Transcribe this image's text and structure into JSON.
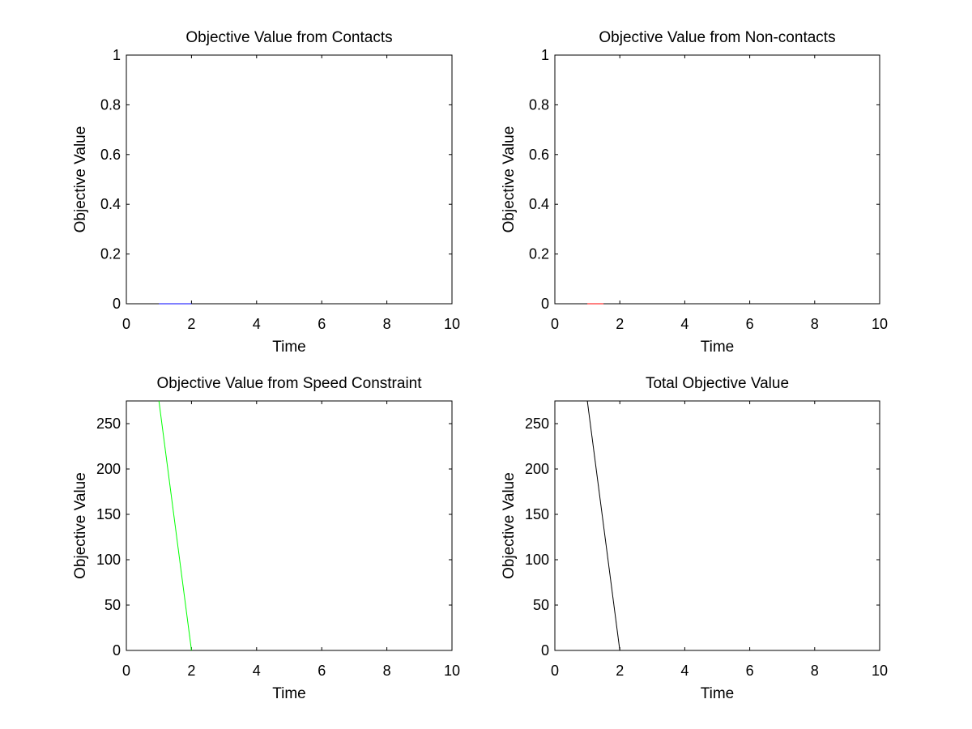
{
  "chart_data": [
    {
      "type": "line",
      "title": "Objective Value from Contacts",
      "xlabel": "Time",
      "ylabel": "Objective Value",
      "xlim": [
        0,
        10
      ],
      "ylim": [
        0,
        1
      ],
      "xticks": [
        0,
        2,
        4,
        6,
        8,
        10
      ],
      "yticks": [
        0,
        0.2,
        0.4,
        0.6,
        0.8,
        1
      ],
      "ytick_labels": [
        "0",
        "0.2",
        "0.4",
        "0.6",
        "0.8",
        "1"
      ],
      "grid": false,
      "series": [
        {
          "color": "#0000ff",
          "x": [
            1,
            2
          ],
          "y": [
            0,
            0
          ]
        }
      ]
    },
    {
      "type": "line",
      "title": "Objective Value from Non-contacts",
      "xlabel": "Time",
      "ylabel": "Objective Value",
      "xlim": [
        0,
        10
      ],
      "ylim": [
        0,
        1
      ],
      "xticks": [
        0,
        2,
        4,
        6,
        8,
        10
      ],
      "yticks": [
        0,
        0.2,
        0.4,
        0.6,
        0.8,
        1
      ],
      "ytick_labels": [
        "0",
        "0.2",
        "0.4",
        "0.6",
        "0.8",
        "1"
      ],
      "grid": false,
      "series": [
        {
          "color": "#ff0000",
          "x": [
            1,
            1.5
          ],
          "y": [
            0,
            0
          ]
        }
      ]
    },
    {
      "type": "line",
      "title": "Objective Value from Speed Constraint",
      "xlabel": "Time",
      "ylabel": "Objective Value",
      "xlim": [
        0,
        10
      ],
      "ylim": [
        0,
        275
      ],
      "xticks": [
        0,
        2,
        4,
        6,
        8,
        10
      ],
      "yticks": [
        0,
        50,
        100,
        150,
        200,
        250
      ],
      "ytick_labels": [
        "0",
        "50",
        "100",
        "150",
        "200",
        "250"
      ],
      "grid": false,
      "series": [
        {
          "color": "#00ff00",
          "x": [
            1,
            2
          ],
          "y": [
            275,
            0
          ]
        }
      ]
    },
    {
      "type": "line",
      "title": "Total Objective Value",
      "xlabel": "Time",
      "ylabel": "Objective Value",
      "xlim": [
        0,
        10
      ],
      "ylim": [
        0,
        275
      ],
      "xticks": [
        0,
        2,
        4,
        6,
        8,
        10
      ],
      "yticks": [
        0,
        50,
        100,
        150,
        200,
        250
      ],
      "ytick_labels": [
        "0",
        "50",
        "100",
        "150",
        "200",
        "250"
      ],
      "grid": false,
      "series": [
        {
          "color": "#000000",
          "x": [
            1,
            2
          ],
          "y": [
            275,
            0
          ]
        }
      ]
    }
  ]
}
